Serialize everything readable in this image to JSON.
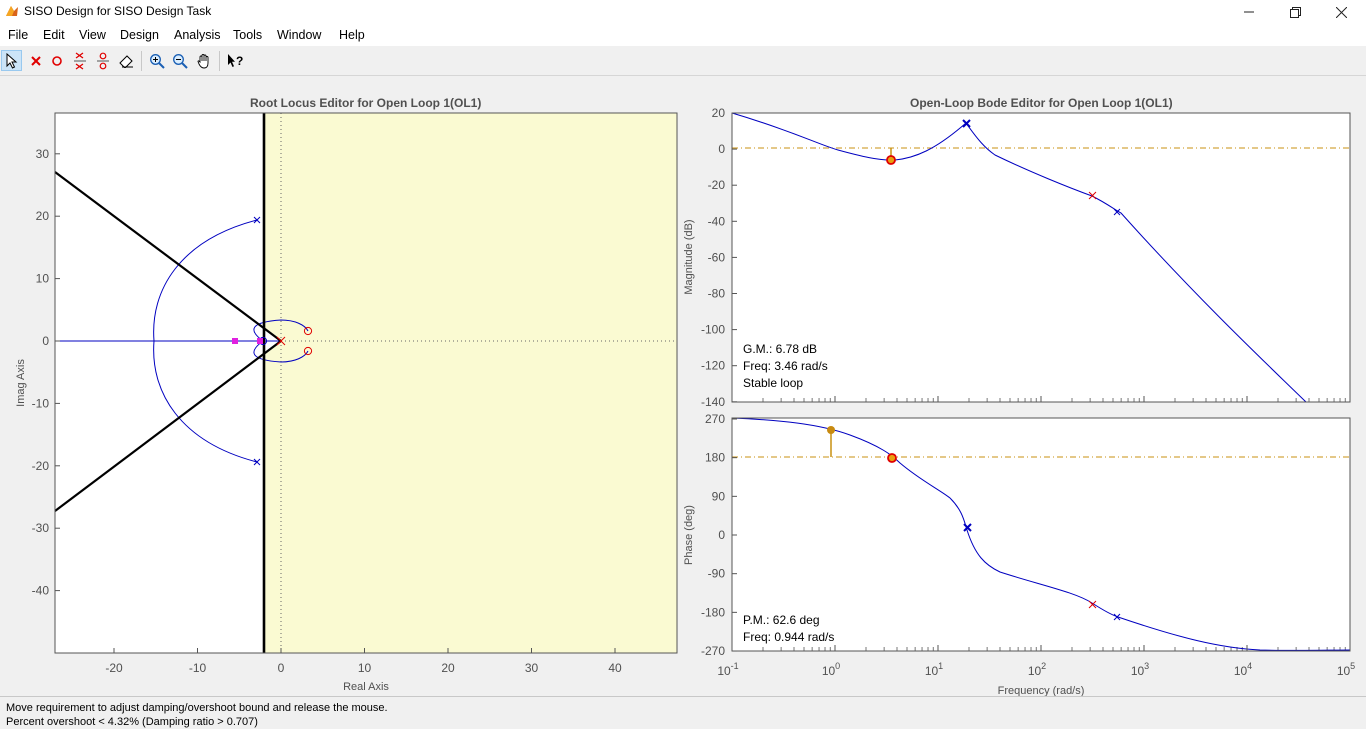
{
  "window": {
    "title": "SISO Design for SISO Design Task"
  },
  "menu": [
    "File",
    "Edit",
    "View",
    "Design",
    "Analysis",
    "Tools",
    "Window",
    "Help"
  ],
  "toolbar": [
    "select-arrow-icon",
    "add-real-pole-icon",
    "add-real-zero-icon",
    "add-complex-pole-icon",
    "add-complex-zero-icon",
    "eraser-icon",
    "zoom-in-icon",
    "zoom-out-icon",
    "pan-hand-icon",
    "whats-this-help-icon"
  ],
  "root_locus": {
    "title": "Root Locus Editor for Open Loop 1(OL1)",
    "xlabel": "Real Axis",
    "ylabel": "Imag Axis",
    "xticks": [
      "-20",
      "-10",
      "0",
      "10",
      "20",
      "30",
      "40"
    ],
    "yticks": [
      "30",
      "20",
      "10",
      "0",
      "-10",
      "-20",
      "-30",
      "-40"
    ]
  },
  "bode": {
    "title": "Open-Loop Bode Editor for Open Loop 1(OL1)",
    "mag_ylabel": "Magnitude (dB)",
    "phase_ylabel": "Phase (deg)",
    "xlabel": "Frequency (rad/s)",
    "mag_yticks": [
      "20",
      "0",
      "-20",
      "-40",
      "-60",
      "-80",
      "-100",
      "-120",
      "-140"
    ],
    "phase_yticks": [
      "270",
      "180",
      "90",
      "0",
      "-90",
      "-180",
      "-270"
    ],
    "xticks": [
      {
        "base": "10",
        "exp": "-1"
      },
      {
        "base": "10",
        "exp": "0"
      },
      {
        "base": "10",
        "exp": "1"
      },
      {
        "base": "10",
        "exp": "2"
      },
      {
        "base": "10",
        "exp": "3"
      },
      {
        "base": "10",
        "exp": "4"
      },
      {
        "base": "10",
        "exp": "5"
      }
    ],
    "gm": {
      "line1": "G.M.: 6.78 dB",
      "line2": "Freq: 3.46 rad/s",
      "line3": "Stable loop"
    },
    "pm": {
      "line1": "P.M.: 62.6 deg",
      "line2": "Freq: 0.944 rad/s"
    }
  },
  "status": {
    "line1": "Move requirement to adjust damping/overshoot bound and release the mouse.",
    "line2": "Percent overshoot < 4.32% (Damping ratio > 0.707)"
  },
  "colors": {
    "locus": "#0000c0",
    "requirement_region": "#fafad2",
    "zero": "#e00000",
    "closed_loop_pole": "#e020e0",
    "margin": "#c89010"
  }
}
